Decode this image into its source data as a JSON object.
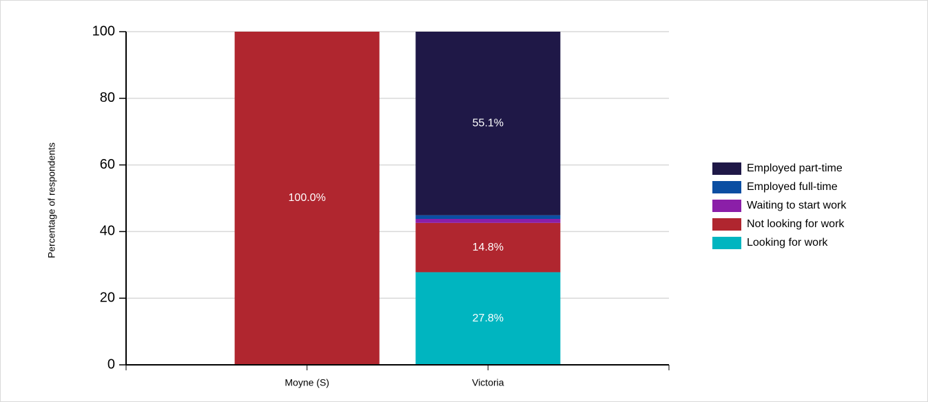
{
  "chart_data": {
    "type": "stacked_bar",
    "ylabel": "Percentage of respondents",
    "categories": [
      "Moyne (S)",
      "Victoria"
    ],
    "series": [
      {
        "name": "Looking for work",
        "color": "#00b5c0",
        "values": [
          0,
          27.8
        ],
        "value_labels": [
          null,
          "27.8%"
        ]
      },
      {
        "name": "Not looking for work",
        "color": "#b0262f",
        "values": [
          100,
          14.8
        ],
        "value_labels": [
          "100.0%",
          "14.8%"
        ]
      },
      {
        "name": "Waiting to start work",
        "color": "#8b1fa8",
        "values": [
          0,
          1.2
        ],
        "value_labels": [
          null,
          null
        ]
      },
      {
        "name": "Employed full-time",
        "color": "#0b4ea2",
        "values": [
          0,
          1.1
        ],
        "value_labels": [
          null,
          null
        ]
      },
      {
        "name": "Employed part-time",
        "color": "#1f1847",
        "values": [
          0,
          55.1
        ],
        "value_labels": [
          null,
          "55.1%"
        ]
      }
    ],
    "ylim": [
      0,
      100
    ],
    "yticks": [
      0,
      20,
      40,
      60,
      80,
      100
    ],
    "grid": true,
    "legend": "right"
  }
}
